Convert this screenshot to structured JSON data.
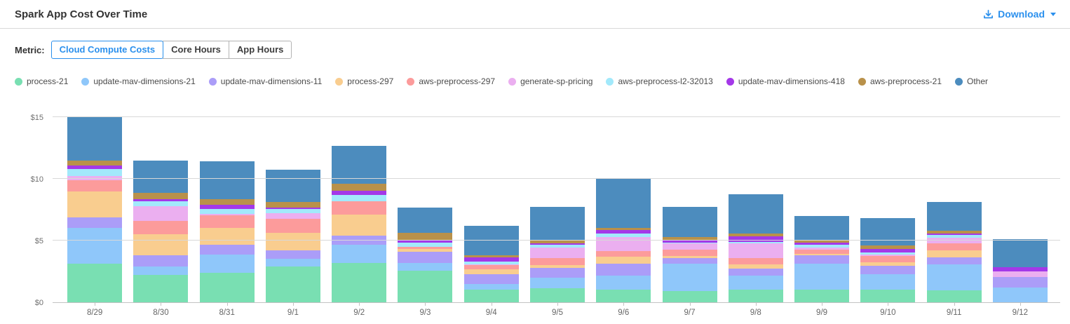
{
  "header": {
    "title": "Spark App Cost Over Time",
    "download_label": "Download"
  },
  "metric": {
    "label": "Metric:",
    "options": [
      {
        "label": "Cloud Compute Costs",
        "active": true
      },
      {
        "label": "Core Hours",
        "active": false
      },
      {
        "label": "App Hours",
        "active": false
      }
    ]
  },
  "colors": {
    "accent": "#2b90ed",
    "grid": "#d8d8d8",
    "axis_text": "#707070"
  },
  "chart_data": {
    "type": "bar",
    "stacked": true,
    "grid": "horizontal",
    "legend_position": "top",
    "currency": "$",
    "ylim": [
      0,
      15
    ],
    "y_ticks": [
      {
        "value": 0,
        "label": "$0"
      },
      {
        "value": 5,
        "label": "$5"
      },
      {
        "value": 10,
        "label": "$10"
      },
      {
        "value": 15,
        "label": "$15"
      }
    ],
    "categories": [
      "8/29",
      "8/30",
      "8/31",
      "9/1",
      "9/2",
      "9/3",
      "9/4",
      "9/5",
      "9/6",
      "9/7",
      "9/8",
      "9/9",
      "9/10",
      "9/11",
      "9/12"
    ],
    "series": [
      {
        "name": "process-21",
        "color": "#79dfb2",
        "values": [
          3.15,
          2.2,
          2.4,
          2.9,
          3.2,
          2.55,
          1.0,
          1.15,
          1.05,
          0.9,
          1.0,
          1.05,
          1.05,
          0.95,
          0.0
        ]
      },
      {
        "name": "update-mav-dimensions-21",
        "color": "#8fc7fa",
        "values": [
          2.85,
          0.7,
          1.45,
          0.6,
          1.45,
          0.65,
          0.5,
          0.85,
          1.1,
          2.2,
          1.15,
          2.05,
          1.2,
          2.1,
          1.2
        ]
      },
      {
        "name": "update-mav-dimensions-11",
        "color": "#ab9df8",
        "values": [
          0.9,
          0.9,
          0.8,
          0.7,
          0.75,
          0.9,
          0.75,
          0.8,
          0.95,
          0.5,
          0.6,
          0.7,
          0.7,
          0.6,
          0.85
        ]
      },
      {
        "name": "process-297",
        "color": "#f9cd8f",
        "values": [
          2.1,
          1.7,
          1.35,
          1.45,
          1.7,
          0.2,
          0.45,
          0.2,
          0.6,
          0.15,
          0.3,
          0.15,
          0.3,
          0.55,
          0.0
        ]
      },
      {
        "name": "aws-preprocess-297",
        "color": "#fc9b9b",
        "values": [
          0.9,
          1.1,
          1.05,
          1.1,
          1.1,
          0.2,
          0.3,
          0.6,
          0.45,
          0.5,
          0.55,
          0.3,
          0.5,
          0.6,
          0.0
        ]
      },
      {
        "name": "generate-sp-pricing",
        "color": "#ebaff0",
        "values": [
          0.35,
          1.2,
          0.1,
          0.45,
          0.0,
          0.0,
          0.1,
          0.85,
          1.15,
          0.5,
          1.2,
          0.2,
          0.1,
          0.45,
          0.45
        ]
      },
      {
        "name": "aws-preprocess-l2-32013",
        "color": "#a2e9fb",
        "values": [
          0.55,
          0.4,
          0.4,
          0.35,
          0.5,
          0.35,
          0.2,
          0.2,
          0.25,
          0.1,
          0.1,
          0.2,
          0.2,
          0.2,
          0.0
        ]
      },
      {
        "name": "update-mav-dimensions-418",
        "color": "#a438e8",
        "values": [
          0.3,
          0.15,
          0.35,
          0.15,
          0.35,
          0.2,
          0.35,
          0.1,
          0.3,
          0.15,
          0.45,
          0.2,
          0.3,
          0.15,
          0.35
        ]
      },
      {
        "name": "aws-preprocess-21",
        "color": "#b9914a",
        "values": [
          0.4,
          0.5,
          0.45,
          0.45,
          0.55,
          0.55,
          0.15,
          0.25,
          0.2,
          0.3,
          0.2,
          0.2,
          0.25,
          0.2,
          0.0
        ]
      },
      {
        "name": "Other",
        "color": "#4c8cbe",
        "values": [
          3.55,
          2.65,
          3.05,
          2.6,
          3.1,
          2.1,
          2.4,
          2.75,
          3.95,
          2.45,
          3.2,
          1.95,
          2.25,
          2.35,
          2.25
        ]
      }
    ]
  }
}
